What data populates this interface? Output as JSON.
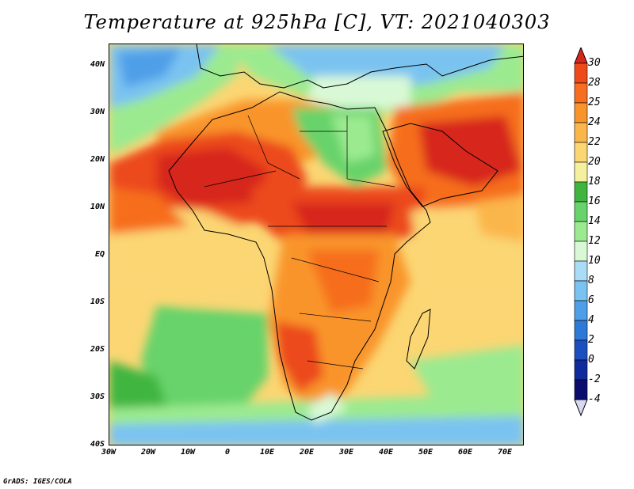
{
  "title": "Temperature at 925hPa [C], VT: 2021040303",
  "credit": "GrADS: IGES/COLA",
  "map": {
    "lon_range": [
      -30,
      75
    ],
    "lat_range": [
      -40,
      45
    ],
    "lat_ticks": [
      "40N",
      "30N",
      "20N",
      "10N",
      "EQ",
      "10S",
      "20S",
      "30S",
      "40S"
    ],
    "lon_ticks": [
      "30W",
      "20W",
      "10W",
      "0",
      "10E",
      "20E",
      "30E",
      "40E",
      "50E",
      "60E",
      "70E"
    ]
  },
  "colorbar": {
    "labels": [
      "30",
      "28",
      "25",
      "24",
      "22",
      "20",
      "18",
      "16",
      "14",
      "12",
      "10",
      "8",
      "6",
      "4",
      "2",
      "0",
      "-2",
      "-4"
    ],
    "colors": [
      "#d7261c",
      "#ec4a1a",
      "#f66e1e",
      "#f9942a",
      "#fbb64b",
      "#fbd673",
      "#f6ef9e",
      "#3fb53f",
      "#68d36a",
      "#9bea90",
      "#d9f9d6",
      "#a9dcf6",
      "#7ac3f1",
      "#4f9fe8",
      "#2d79d8",
      "#1a4fbd",
      "#0e2a9b",
      "#0a0d6e",
      "#d8d8f2"
    ]
  }
}
